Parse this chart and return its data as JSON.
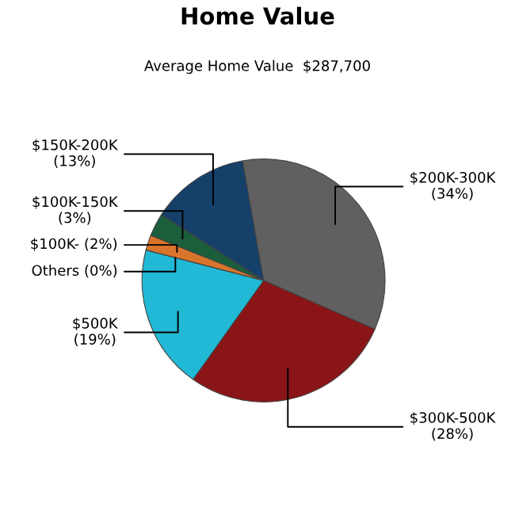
{
  "chart_data": {
    "type": "pie",
    "title": "Home Value",
    "subtitle": "Average Home Value  $287,700",
    "categories": [
      "$200K-300K",
      "$300K-500K",
      "$500K",
      "Others",
      "$100K-",
      "$100K-150K",
      "$150K-200K"
    ],
    "values": [
      34,
      28,
      19,
      0,
      2,
      3,
      13
    ],
    "value_labels": [
      "(34%)",
      "(28%)",
      "(19%)",
      "(0%)",
      "(2%)",
      "(3%)",
      "(13%)"
    ],
    "colors": [
      "#606060",
      "#8a1518",
      "#22b9d6",
      "#cccccc",
      "#d9742c",
      "#1b5e3c",
      "#15406a"
    ]
  }
}
